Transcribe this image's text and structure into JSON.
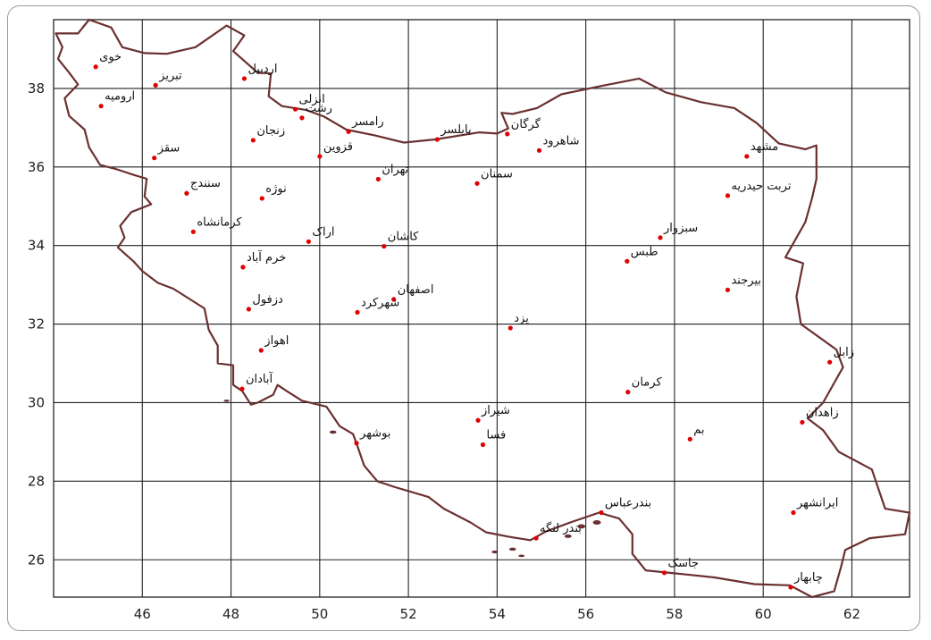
{
  "x_axis": {
    "ticks": [
      "46",
      "48",
      "50",
      "52",
      "54",
      "56",
      "58",
      "60",
      "62"
    ],
    "range": [
      44,
      63.3
    ]
  },
  "y_axis": {
    "ticks": [
      "26",
      "28",
      "30",
      "32",
      "34",
      "36",
      "38"
    ],
    "range": [
      25.05,
      39.75
    ]
  },
  "colors": {
    "border": "#6b3030",
    "grid": "#222222",
    "city": "#e00000",
    "land": "#ffffff"
  },
  "cities": [
    {
      "name": "خوی",
      "lon": 44.95,
      "lat": 38.55
    },
    {
      "name": "تبریز",
      "lon": 46.3,
      "lat": 38.08
    },
    {
      "name": "اردبیل",
      "lon": 48.3,
      "lat": 38.25
    },
    {
      "name": "ارومیه",
      "lon": 45.07,
      "lat": 37.55
    },
    {
      "name": "انزلی",
      "lon": 49.45,
      "lat": 37.47
    },
    {
      "name": "رشت",
      "lon": 49.6,
      "lat": 37.25
    },
    {
      "name": "رامسر",
      "lon": 50.65,
      "lat": 36.9
    },
    {
      "name": "بابلسر",
      "lon": 52.65,
      "lat": 36.7
    },
    {
      "name": "گرگان",
      "lon": 54.23,
      "lat": 36.84
    },
    {
      "name": "شاهرود",
      "lon": 54.95,
      "lat": 36.42
    },
    {
      "name": "مشهد",
      "lon": 59.63,
      "lat": 36.27
    },
    {
      "name": "زنجان",
      "lon": 48.5,
      "lat": 36.68
    },
    {
      "name": "قزوین",
      "lon": 50.0,
      "lat": 36.27
    },
    {
      "name": "سقز",
      "lon": 46.27,
      "lat": 36.23
    },
    {
      "name": "تهران",
      "lon": 51.32,
      "lat": 35.69
    },
    {
      "name": "سمنان",
      "lon": 53.55,
      "lat": 35.58
    },
    {
      "name": "تربت حیدریه",
      "lon": 59.2,
      "lat": 35.27
    },
    {
      "name": "سنندج",
      "lon": 47.0,
      "lat": 35.33
    },
    {
      "name": "نوژه",
      "lon": 48.7,
      "lat": 35.2
    },
    {
      "name": "کرمانشاه",
      "lon": 47.15,
      "lat": 34.35
    },
    {
      "name": "اراک",
      "lon": 49.75,
      "lat": 34.1
    },
    {
      "name": "کاشان",
      "lon": 51.45,
      "lat": 33.98
    },
    {
      "name": "سبزوار",
      "lon": 57.68,
      "lat": 34.2
    },
    {
      "name": "خرم آباد",
      "lon": 48.27,
      "lat": 33.45
    },
    {
      "name": "طبس",
      "lon": 56.93,
      "lat": 33.6
    },
    {
      "name": "بیرجند",
      "lon": 59.2,
      "lat": 32.87
    },
    {
      "name": "اصفهان",
      "lon": 51.67,
      "lat": 32.63
    },
    {
      "name": "شهرکرد",
      "lon": 50.85,
      "lat": 32.3
    },
    {
      "name": "دزفول",
      "lon": 48.4,
      "lat": 32.38
    },
    {
      "name": "یزد",
      "lon": 54.3,
      "lat": 31.9
    },
    {
      "name": "اهواز",
      "lon": 48.68,
      "lat": 31.33
    },
    {
      "name": "زابل",
      "lon": 61.5,
      "lat": 31.03
    },
    {
      "name": "آبادان",
      "lon": 48.25,
      "lat": 30.35
    },
    {
      "name": "کرمان",
      "lon": 56.95,
      "lat": 30.27
    },
    {
      "name": "شیراز",
      "lon": 53.57,
      "lat": 29.55
    },
    {
      "name": "زاهدان",
      "lon": 60.88,
      "lat": 29.5
    },
    {
      "name": "فسا",
      "lon": 53.68,
      "lat": 28.93
    },
    {
      "name": "بوشهر",
      "lon": 50.83,
      "lat": 28.97
    },
    {
      "name": "بم",
      "lon": 58.35,
      "lat": 29.07
    },
    {
      "name": "ایرانشهر",
      "lon": 60.68,
      "lat": 27.2
    },
    {
      "name": "بندرعباس",
      "lon": 56.35,
      "lat": 27.2
    },
    {
      "name": "بندر لنگه",
      "lon": 54.88,
      "lat": 26.55
    },
    {
      "name": "جاسک",
      "lon": 57.77,
      "lat": 25.67
    },
    {
      "name": "چابهار",
      "lon": 60.62,
      "lat": 25.3
    }
  ],
  "border_outline": [
    [
      44.05,
      39.4
    ],
    [
      44.55,
      39.4
    ],
    [
      44.8,
      39.75
    ],
    [
      45.3,
      39.55
    ],
    [
      45.55,
      39.05
    ],
    [
      46.05,
      38.9
    ],
    [
      46.55,
      38.88
    ],
    [
      47.2,
      39.05
    ],
    [
      47.9,
      39.6
    ],
    [
      48.3,
      39.35
    ],
    [
      48.05,
      38.95
    ],
    [
      48.6,
      38.4
    ],
    [
      48.9,
      38.38
    ],
    [
      48.85,
      37.8
    ],
    [
      49.15,
      37.55
    ],
    [
      49.7,
      37.45
    ],
    [
      50.1,
      37.28
    ],
    [
      50.6,
      36.95
    ],
    [
      51.25,
      36.8
    ],
    [
      51.9,
      36.62
    ],
    [
      52.6,
      36.7
    ],
    [
      53.6,
      36.88
    ],
    [
      54.0,
      36.85
    ],
    [
      54.25,
      36.98
    ],
    [
      54.1,
      37.38
    ],
    [
      54.35,
      37.35
    ],
    [
      54.9,
      37.5
    ],
    [
      55.45,
      37.85
    ],
    [
      56.3,
      38.05
    ],
    [
      57.2,
      38.25
    ],
    [
      57.8,
      37.9
    ],
    [
      58.6,
      37.65
    ],
    [
      59.35,
      37.5
    ],
    [
      59.85,
      37.12
    ],
    [
      60.35,
      36.6
    ],
    [
      60.95,
      36.45
    ],
    [
      61.2,
      36.55
    ],
    [
      61.2,
      35.7
    ],
    [
      61.1,
      35.2
    ],
    [
      60.95,
      34.6
    ],
    [
      60.5,
      33.7
    ],
    [
      60.9,
      33.55
    ],
    [
      60.75,
      32.7
    ],
    [
      60.85,
      32.0
    ],
    [
      61.65,
      31.35
    ],
    [
      61.8,
      30.9
    ],
    [
      61.35,
      30.0
    ],
    [
      61.0,
      29.6
    ],
    [
      61.35,
      29.3
    ],
    [
      61.7,
      28.75
    ],
    [
      62.45,
      28.3
    ],
    [
      62.75,
      27.3
    ],
    [
      63.3,
      27.2
    ],
    [
      63.2,
      26.65
    ],
    [
      62.4,
      26.55
    ],
    [
      61.85,
      26.25
    ],
    [
      61.75,
      25.8
    ],
    [
      61.6,
      25.2
    ],
    [
      61.1,
      25.05
    ],
    [
      60.6,
      25.35
    ],
    [
      59.8,
      25.38
    ],
    [
      58.9,
      25.55
    ],
    [
      58.05,
      25.65
    ],
    [
      57.35,
      25.73
    ],
    [
      57.05,
      26.15
    ],
    [
      57.05,
      26.65
    ],
    [
      56.75,
      27.05
    ],
    [
      56.3,
      27.2
    ],
    [
      55.65,
      26.95
    ],
    [
      55.1,
      26.72
    ],
    [
      54.75,
      26.5
    ],
    [
      54.3,
      26.58
    ],
    [
      53.75,
      26.7
    ],
    [
      53.4,
      26.95
    ],
    [
      52.8,
      27.3
    ],
    [
      52.45,
      27.6
    ],
    [
      51.7,
      27.85
    ],
    [
      51.3,
      28.0
    ],
    [
      51.0,
      28.4
    ],
    [
      50.85,
      28.9
    ],
    [
      50.75,
      29.2
    ],
    [
      50.45,
      29.4
    ],
    [
      50.15,
      29.9
    ],
    [
      49.6,
      30.05
    ],
    [
      49.25,
      30.3
    ],
    [
      49.05,
      30.45
    ],
    [
      48.95,
      30.2
    ],
    [
      48.6,
      30.0
    ],
    [
      48.45,
      29.95
    ],
    [
      48.25,
      30.3
    ],
    [
      48.05,
      30.45
    ],
    [
      48.05,
      30.95
    ],
    [
      47.7,
      31.0
    ],
    [
      47.7,
      31.45
    ],
    [
      47.5,
      31.85
    ],
    [
      47.4,
      32.4
    ],
    [
      46.7,
      32.9
    ],
    [
      46.35,
      33.05
    ],
    [
      46.0,
      33.35
    ],
    [
      45.8,
      33.6
    ],
    [
      45.45,
      33.95
    ],
    [
      45.6,
      34.2
    ],
    [
      45.5,
      34.5
    ],
    [
      45.75,
      34.85
    ],
    [
      46.2,
      35.05
    ],
    [
      46.05,
      35.25
    ],
    [
      46.1,
      35.7
    ],
    [
      45.8,
      35.8
    ],
    [
      45.4,
      35.95
    ],
    [
      45.05,
      36.05
    ],
    [
      44.8,
      36.5
    ],
    [
      44.7,
      36.95
    ],
    [
      44.35,
      37.3
    ],
    [
      44.25,
      37.75
    ],
    [
      44.55,
      38.1
    ],
    [
      44.35,
      38.4
    ],
    [
      44.1,
      38.75
    ],
    [
      44.2,
      39.05
    ],
    [
      44.05,
      39.4
    ]
  ]
}
